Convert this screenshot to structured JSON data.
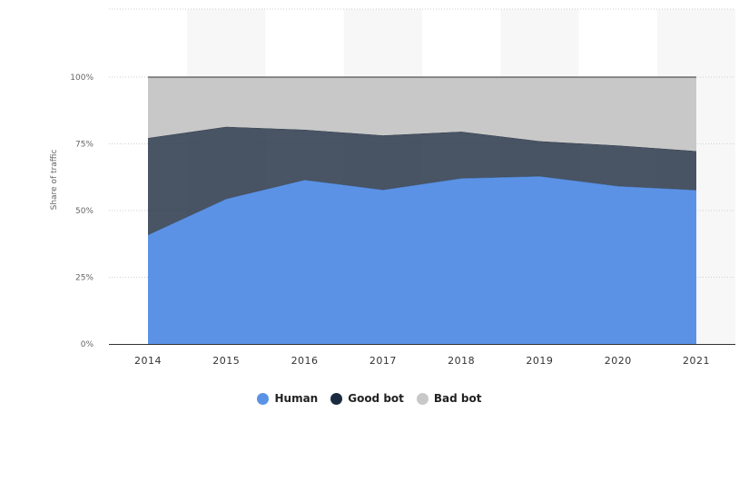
{
  "chart_data": {
    "type": "area",
    "stacked": true,
    "x": [
      "2014",
      "2015",
      "2016",
      "2017",
      "2018",
      "2019",
      "2020",
      "2021"
    ],
    "ylabel": "Share of traffic",
    "ylim": [
      0,
      100
    ],
    "y_ticks": [
      "0%",
      "25%",
      "50%",
      "75%",
      "100%"
    ],
    "grid": "horizontal dotted",
    "legend_position": "bottom-center",
    "series": [
      {
        "name": "Human",
        "color": "#5b92e5",
        "values": [
          40.9,
          54.4,
          61.5,
          57.8,
          62.1,
          62.9,
          59.2,
          57.7
        ]
      },
      {
        "name": "Good bot",
        "color": "#1b2b3f",
        "values": [
          36.3,
          27.0,
          18.8,
          20.4,
          17.5,
          13.1,
          15.2,
          14.6
        ]
      },
      {
        "name": "Bad bot",
        "color": "#c8c8c8",
        "values": [
          22.8,
          18.6,
          19.7,
          21.8,
          20.4,
          24.0,
          25.6,
          27.7
        ]
      }
    ]
  }
}
